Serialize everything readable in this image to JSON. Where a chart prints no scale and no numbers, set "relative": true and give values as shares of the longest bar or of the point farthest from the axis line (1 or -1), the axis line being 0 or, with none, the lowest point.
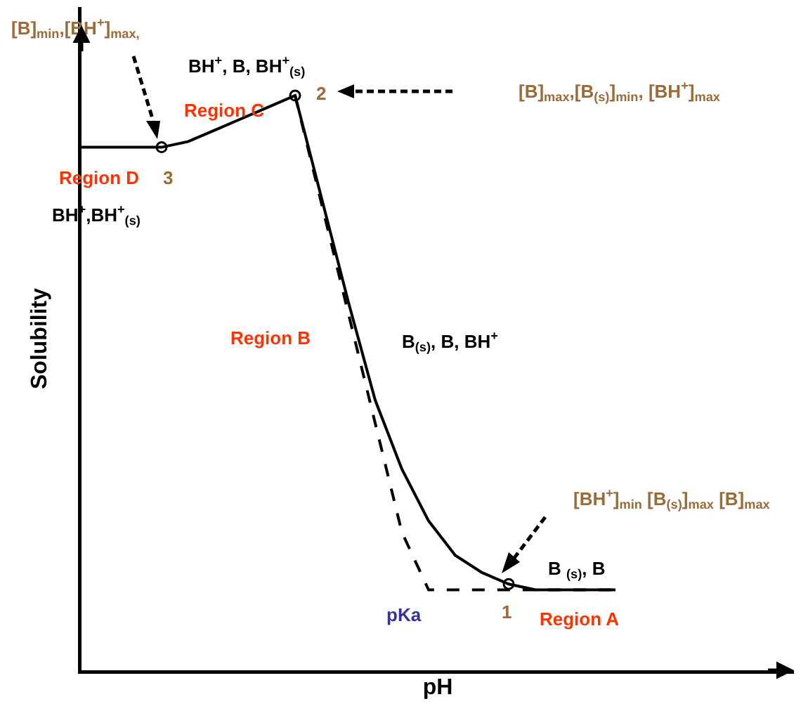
{
  "chart_data": {
    "type": "line",
    "relative": true,
    "xlabel": "pH",
    "ylabel": "Solubility",
    "categories": [
      null,
      null,
      null,
      null,
      null,
      null,
      null,
      null,
      null,
      null,
      null,
      null,
      null,
      null,
      null,
      null,
      null,
      null,
      null,
      null,
      null
    ],
    "series": [
      {
        "color": "#000000",
        "line_style": "solid",
        "values": [
          0.91,
          0.91,
          0.91,
          0.91,
          0.92,
          0.94,
          0.96,
          0.98,
          1.0,
          0.82,
          0.64,
          0.47,
          0.35,
          0.26,
          0.2,
          0.17,
          0.15,
          0.14,
          0.14,
          0.14,
          0.14
        ]
      },
      {
        "color": "#000000",
        "line_style": "dashed",
        "values": [
          null,
          null,
          null,
          null,
          null,
          null,
          null,
          null,
          1.0,
          0.81,
          0.62,
          0.43,
          0.24,
          0.14,
          0.14,
          0.14,
          0.14,
          0.14,
          0.14,
          0.14,
          0.14
        ]
      }
    ],
    "annotations": [
      "[B]$_{min}$,[BH$^{+}$]$_{max,}$",
      "BH$^{+}$, B, BH$^{+}$$_{(s)}$",
      "[B]$_{max}$,[B$_{(s)}$]$_{min}$, [BH$^{+}$]$_{max}$",
      "Region C",
      "2",
      "Region D",
      "3",
      "BH$^{+}$,BH$^{+}$$_{(s)}$",
      "Region B",
      "B$_{(s)}$, B, BH$^{+}$",
      "[BH$^{+}$]$_{min}$ [B$_{(s)}$]$_{max}$ [B]$_{max}$",
      "B $_{(s)}$, B",
      "pKa",
      "1",
      "Region A"
    ]
  }
}
